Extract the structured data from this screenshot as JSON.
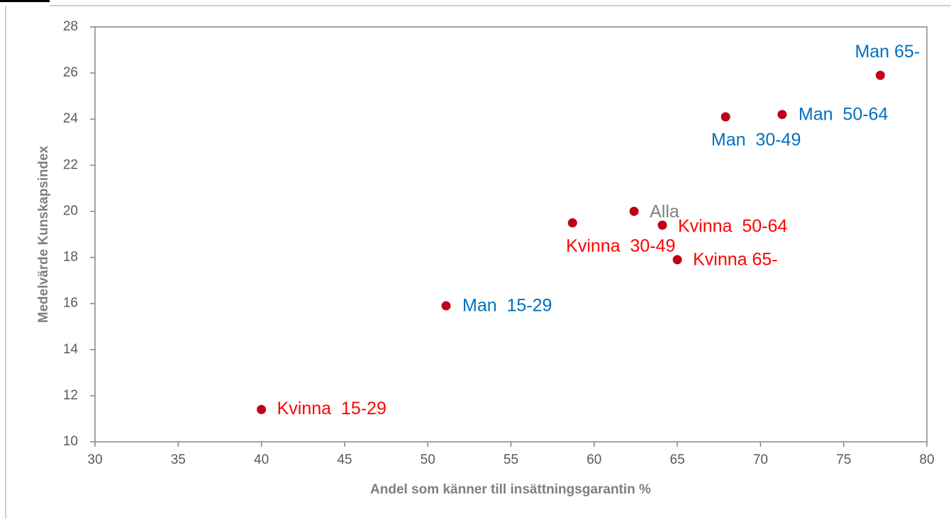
{
  "chart_data": {
    "type": "scatter",
    "x_label": "Andel som känner till insättningsgarantin %",
    "y_label": "Medelvärde Kunskapsindex",
    "x": [
      40.0,
      51.1,
      58.7,
      62.4,
      64.1,
      65.0,
      67.9,
      71.3,
      77.2
    ],
    "values": [
      11.4,
      15.9,
      19.5,
      20.0,
      19.4,
      17.9,
      24.1,
      24.2,
      25.9
    ],
    "point_labels": [
      "Kvinna  15-29",
      "Man  15-29",
      "Kvinna  30-49",
      "Alla",
      "Kvinna  50-64",
      "Kvinna 65-",
      "Man  30-49",
      "Man  50-64",
      "Man 65-"
    ],
    "label_colors": [
      "#ff0000",
      "#0070c0",
      "#ff0000",
      "#808080",
      "#ff0000",
      "#ff0000",
      "#0070c0",
      "#0070c0",
      "#0070c0"
    ],
    "color": "#c0001a",
    "xlim": [
      30,
      80
    ],
    "xticks": [
      30,
      35,
      40,
      45,
      50,
      55,
      60,
      65,
      70,
      75,
      80
    ],
    "ylim": [
      10,
      28
    ],
    "yticks": [
      10,
      12,
      14,
      16,
      18,
      20,
      22,
      24,
      26,
      28
    ],
    "grid": false
  }
}
